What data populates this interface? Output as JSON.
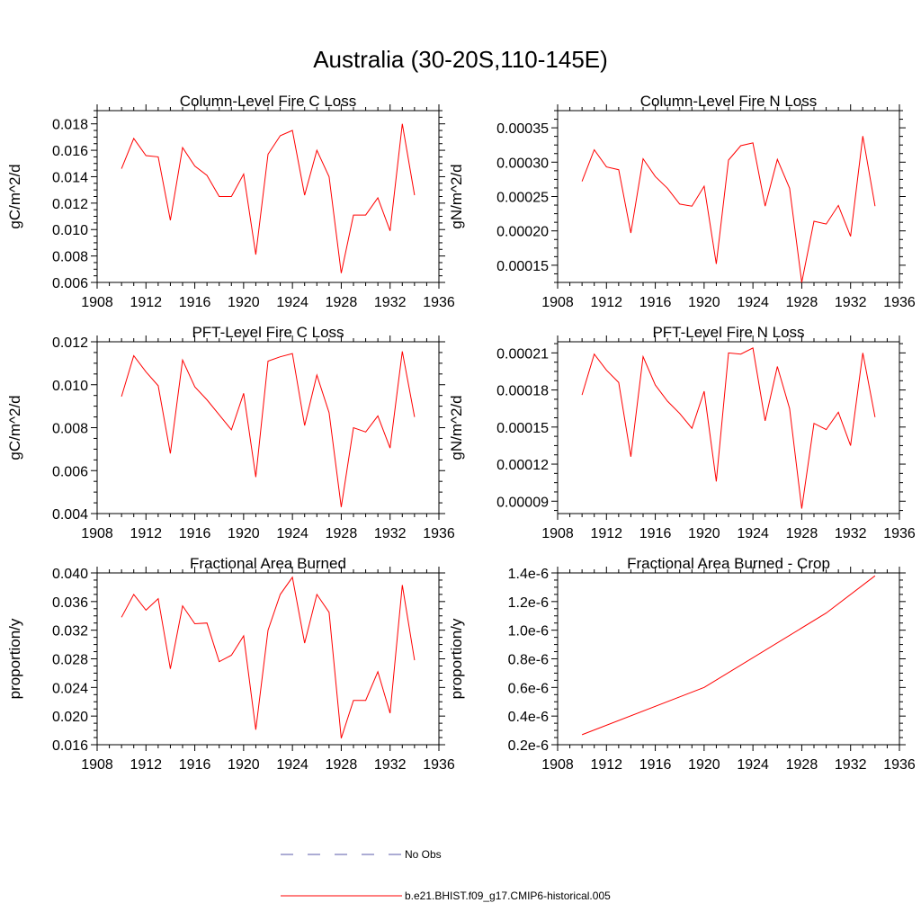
{
  "title": "Australia (30-20S,110-145E)",
  "colors": {
    "model": "#ff0000",
    "obs": "#5a5aa8",
    "axis": "#000000"
  },
  "legend": {
    "obs_label": "No Obs",
    "model_label": "b.e21.BHIST.f09_g17.CMIP6-historical.005"
  },
  "chart_data": [
    {
      "type": "line",
      "title": "Column-Level Fire C Loss",
      "ylabel": "gC/m^2/d",
      "xlim": [
        1908,
        1936
      ],
      "ylim": [
        0.006,
        0.019
      ],
      "xticks": [
        1908,
        1912,
        1916,
        1920,
        1924,
        1928,
        1932,
        1936
      ],
      "xtick_labels": [
        "1908",
        "1912",
        "1916",
        "1920",
        "1924",
        "1928",
        "1932",
        "1936"
      ],
      "yticks": [
        0.006,
        0.008,
        0.01,
        0.012,
        0.014,
        0.016,
        0.018
      ],
      "ytick_labels": [
        "0.006",
        "0.008",
        "0.010",
        "0.012",
        "0.014",
        "0.016",
        "0.018"
      ],
      "series": [
        {
          "name": "b.e21.BHIST.f09_g17.CMIP6-historical.005",
          "x": [
            1910,
            1911,
            1912,
            1913,
            1914,
            1915,
            1916,
            1917,
            1918,
            1919,
            1920,
            1921,
            1922,
            1923,
            1924,
            1925,
            1926,
            1927,
            1928,
            1929,
            1930,
            1931,
            1932,
            1933,
            1934
          ],
          "y": [
            0.0146,
            0.0169,
            0.0156,
            0.0155,
            0.0107,
            0.0162,
            0.0148,
            0.0141,
            0.0125,
            0.0125,
            0.0142,
            0.0081,
            0.0157,
            0.0171,
            0.0175,
            0.0126,
            0.016,
            0.014,
            0.0067,
            0.0111,
            0.0111,
            0.0124,
            0.0099,
            0.018,
            0.0126
          ]
        }
      ]
    },
    {
      "type": "line",
      "title": "Column-Level Fire N Loss",
      "ylabel": "gN/m^2/d",
      "xlim": [
        1908,
        1936
      ],
      "ylim": [
        0.000125,
        0.000375
      ],
      "xticks": [
        1908,
        1912,
        1916,
        1920,
        1924,
        1928,
        1932,
        1936
      ],
      "xtick_labels": [
        "1908",
        "1912",
        "1916",
        "1920",
        "1924",
        "1928",
        "1932",
        "1936"
      ],
      "yticks": [
        0.00015,
        0.0002,
        0.00025,
        0.0003,
        0.00035
      ],
      "ytick_labels": [
        "0.00015",
        "0.00020",
        "0.00025",
        "0.00030",
        "0.00035"
      ],
      "series": [
        {
          "name": "b.e21.BHIST.f09_g17.CMIP6-historical.005",
          "x": [
            1910,
            1911,
            1912,
            1913,
            1914,
            1915,
            1916,
            1917,
            1918,
            1919,
            1920,
            1921,
            1922,
            1923,
            1924,
            1925,
            1926,
            1927,
            1928,
            1929,
            1930,
            1931,
            1932,
            1933,
            1934
          ],
          "y": [
            0.000272,
            0.000318,
            0.000293,
            0.000289,
            0.000197,
            0.000305,
            0.000279,
            0.000262,
            0.000239,
            0.000236,
            0.000265,
            0.000152,
            0.000303,
            0.000324,
            0.000328,
            0.000236,
            0.000304,
            0.000262,
            0.000125,
            0.000214,
            0.00021,
            0.000237,
            0.000192,
            0.000338,
            0.000236
          ]
        }
      ]
    },
    {
      "type": "line",
      "title": "PFT-Level Fire C Loss",
      "ylabel": "gC/m^2/d",
      "xlim": [
        1908,
        1936
      ],
      "ylim": [
        0.004,
        0.012
      ],
      "xticks": [
        1908,
        1912,
        1916,
        1920,
        1924,
        1928,
        1932,
        1936
      ],
      "xtick_labels": [
        "1908",
        "1912",
        "1916",
        "1920",
        "1924",
        "1928",
        "1932",
        "1936"
      ],
      "yticks": [
        0.004,
        0.006,
        0.008,
        0.01,
        0.012
      ],
      "ytick_labels": [
        "0.004",
        "0.006",
        "0.008",
        "0.010",
        "0.012"
      ],
      "series": [
        {
          "name": "b.e21.BHIST.f09_g17.CMIP6-historical.005",
          "x": [
            1910,
            1911,
            1912,
            1913,
            1914,
            1915,
            1916,
            1917,
            1918,
            1919,
            1920,
            1921,
            1922,
            1923,
            1924,
            1925,
            1926,
            1927,
            1928,
            1929,
            1930,
            1931,
            1932,
            1933,
            1934
          ],
          "y": [
            0.00945,
            0.01135,
            0.0106,
            0.00995,
            0.0068,
            0.01115,
            0.0099,
            0.0093,
            0.0086,
            0.0079,
            0.0096,
            0.0057,
            0.0111,
            0.0113,
            0.01145,
            0.0081,
            0.01045,
            0.0087,
            0.0043,
            0.008,
            0.0078,
            0.00855,
            0.00705,
            0.01155,
            0.0085
          ]
        }
      ]
    },
    {
      "type": "line",
      "title": "PFT-Level Fire N Loss",
      "ylabel": "gN/m^2/d",
      "xlim": [
        1908,
        1936
      ],
      "ylim": [
        8e-05,
        0.000219
      ],
      "xticks": [
        1908,
        1912,
        1916,
        1920,
        1924,
        1928,
        1932,
        1936
      ],
      "xtick_labels": [
        "1908",
        "1912",
        "1916",
        "1920",
        "1924",
        "1928",
        "1932",
        "1936"
      ],
      "yticks": [
        9e-05,
        0.00012,
        0.00015,
        0.00018,
        0.00021
      ],
      "ytick_labels": [
        "0.00009",
        "0.00012",
        "0.00015",
        "0.00018",
        "0.00021"
      ],
      "series": [
        {
          "name": "b.e21.BHIST.f09_g17.CMIP6-historical.005",
          "x": [
            1910,
            1911,
            1912,
            1913,
            1914,
            1915,
            1916,
            1917,
            1918,
            1919,
            1920,
            1921,
            1922,
            1923,
            1924,
            1925,
            1926,
            1927,
            1928,
            1929,
            1930,
            1931,
            1932,
            1933,
            1934
          ],
          "y": [
            0.000176,
            0.000209,
            0.000196,
            0.000186,
            0.000126,
            0.000207,
            0.000184,
            0.000171,
            0.000161,
            0.000149,
            0.000179,
            0.000106,
            0.00021,
            0.000209,
            0.000214,
            0.000155,
            0.000199,
            0.000165,
            8.4e-05,
            0.000153,
            0.000148,
            0.000162,
            0.000135,
            0.00021,
            0.000158
          ]
        }
      ]
    },
    {
      "type": "line",
      "title": "Fractional Area Burned",
      "ylabel": "proportion/y",
      "xlim": [
        1908,
        1936
      ],
      "ylim": [
        0.016,
        0.04
      ],
      "xticks": [
        1908,
        1912,
        1916,
        1920,
        1924,
        1928,
        1932,
        1936
      ],
      "xtick_labels": [
        "1908",
        "1912",
        "1916",
        "1920",
        "1924",
        "1928",
        "1932",
        "1936"
      ],
      "yticks": [
        0.016,
        0.02,
        0.024,
        0.028,
        0.032,
        0.036,
        0.04
      ],
      "ytick_labels": [
        "0.016",
        "0.020",
        "0.024",
        "0.028",
        "0.032",
        "0.036",
        "0.040"
      ],
      "series": [
        {
          "name": "b.e21.BHIST.f09_g17.CMIP6-historical.005",
          "x": [
            1910,
            1911,
            1912,
            1913,
            1914,
            1915,
            1916,
            1917,
            1918,
            1919,
            1920,
            1921,
            1922,
            1923,
            1924,
            1925,
            1926,
            1927,
            1928,
            1929,
            1930,
            1931,
            1932,
            1933,
            1934
          ],
          "y": [
            0.0338,
            0.037,
            0.0348,
            0.0364,
            0.0266,
            0.0354,
            0.0329,
            0.033,
            0.0276,
            0.0285,
            0.0312,
            0.0181,
            0.032,
            0.037,
            0.0394,
            0.0302,
            0.037,
            0.0345,
            0.0169,
            0.0222,
            0.0222,
            0.0262,
            0.0204,
            0.0383,
            0.0278
          ]
        }
      ]
    },
    {
      "type": "line",
      "title": "Fractional Area Burned - Crop",
      "ylabel": "proportion/y",
      "xlim": [
        1908,
        1936
      ],
      "ylim": [
        2e-07,
        1.4e-06
      ],
      "xticks": [
        1908,
        1912,
        1916,
        1920,
        1924,
        1928,
        1932,
        1936
      ],
      "xtick_labels": [
        "1908",
        "1912",
        "1916",
        "1920",
        "1924",
        "1928",
        "1932",
        "1936"
      ],
      "yticks": [
        2e-07,
        4e-07,
        6e-07,
        8e-07,
        1e-06,
        1.2e-06,
        1.4e-06
      ],
      "ytick_labels": [
        "0.2e-6",
        "0.4e-6",
        "0.6e-6",
        "0.8e-6",
        "1.0e-6",
        "1.2e-6",
        "1.4e-6"
      ],
      "series": [
        {
          "name": "b.e21.BHIST.f09_g17.CMIP6-historical.005",
          "x": [
            1910,
            1920,
            1930,
            1934
          ],
          "y": [
            2.7e-07,
            6e-07,
            1.12e-06,
            1.38e-06
          ]
        }
      ]
    }
  ]
}
